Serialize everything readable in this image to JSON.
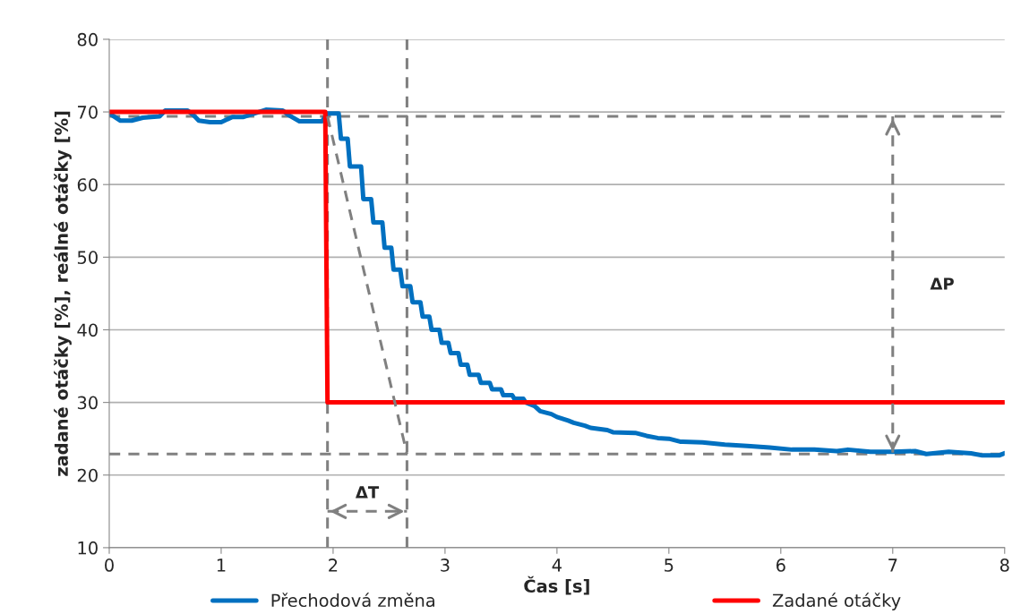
{
  "chart_data": {
    "type": "line",
    "xlabel": "Čas [s]",
    "ylabel": "zadané otáčky [%], reálné otáčky [%]",
    "xlim": [
      0,
      8
    ],
    "ylim": [
      10,
      80
    ],
    "xticks": [
      0,
      1,
      2,
      3,
      4,
      5,
      6,
      7,
      8
    ],
    "yticks": [
      10,
      20,
      30,
      40,
      50,
      60,
      70,
      80
    ],
    "grid": "y",
    "legend": "bottom",
    "marker": "none",
    "series": [
      {
        "name": "Přechodová změna",
        "color": "#0070c0",
        "line_style": "solid",
        "x": [
          0,
          0.1,
          0.2,
          0.3,
          0.45,
          0.5,
          0.7,
          0.75,
          0.8,
          0.9,
          1.0,
          1.1,
          1.2,
          1.3,
          1.4,
          1.55,
          1.6,
          1.7,
          1.8,
          1.9,
          1.95,
          2.05,
          2.07,
          2.13,
          2.15,
          2.25,
          2.27,
          2.34,
          2.36,
          2.44,
          2.46,
          2.52,
          2.54,
          2.6,
          2.62,
          2.69,
          2.71,
          2.78,
          2.8,
          2.86,
          2.88,
          2.95,
          2.97,
          3.03,
          3.05,
          3.12,
          3.14,
          3.2,
          3.22,
          3.3,
          3.32,
          3.4,
          3.42,
          3.5,
          3.52,
          3.6,
          3.62,
          3.7,
          3.72,
          3.8,
          3.85,
          3.95,
          4.0,
          4.1,
          4.15,
          4.25,
          4.3,
          4.45,
          4.5,
          4.7,
          4.8,
          4.9,
          5.0,
          5.1,
          5.3,
          5.5,
          5.7,
          5.9,
          6.1,
          6.3,
          6.5,
          6.6,
          6.8,
          7.0,
          7.2,
          7.3,
          7.5,
          7.7,
          7.8,
          7.95,
          8.0
        ],
        "values": [
          69.8,
          68.8,
          68.8,
          69.2,
          69.4,
          70.2,
          70.2,
          69.6,
          68.8,
          68.6,
          68.6,
          69.3,
          69.3,
          69.8,
          70.3,
          70.2,
          69.6,
          68.7,
          68.7,
          68.7,
          69.8,
          69.8,
          66.3,
          66.3,
          62.5,
          62.5,
          58.0,
          58.0,
          54.8,
          54.8,
          51.3,
          51.3,
          48.3,
          48.3,
          46.0,
          46.0,
          43.8,
          43.8,
          41.8,
          41.8,
          40.0,
          40.0,
          38.2,
          38.2,
          36.8,
          36.8,
          35.2,
          35.2,
          33.8,
          33.8,
          32.7,
          32.7,
          31.8,
          31.8,
          31.0,
          31.0,
          30.5,
          30.5,
          30.0,
          29.5,
          28.8,
          28.4,
          28.0,
          27.5,
          27.2,
          26.8,
          26.5,
          26.2,
          25.9,
          25.8,
          25.4,
          25.1,
          25.0,
          24.6,
          24.5,
          24.2,
          24.0,
          23.8,
          23.5,
          23.5,
          23.3,
          23.5,
          23.2,
          23.2,
          23.3,
          22.9,
          23.2,
          23.0,
          22.7,
          22.7,
          23.0
        ]
      },
      {
        "name": "Zadané otáčky",
        "color": "#ff0000",
        "line_style": "solid",
        "x": [
          0,
          1.93,
          1.95,
          8
        ],
        "values": [
          70,
          70,
          30,
          30
        ]
      },
      {
        "color": "#808080",
        "line_style": "dashed",
        "x": [
          1.95,
          2.66
        ],
        "values": [
          69.4,
          22.9
        ]
      },
      {
        "color": "#808080",
        "line_style": "dashed",
        "x": [
          7,
          7
        ],
        "values": [
          69.4,
          22.9
        ]
      },
      {
        "color": "#808080",
        "line_style": "dashed",
        "x": [
          1.95,
          2.66
        ],
        "values": [
          15,
          15
        ]
      }
    ],
    "ref_lines": [
      {
        "axis": "y",
        "value": 69.4,
        "color": "#808080",
        "line_style": "dashed"
      },
      {
        "axis": "y",
        "value": 22.9,
        "color": "#808080",
        "line_style": "dashed"
      },
      {
        "axis": "x",
        "value": 1.95,
        "color": "#808080",
        "line_style": "dashed"
      },
      {
        "axis": "x",
        "value": 2.66,
        "color": "#808080",
        "line_style": "dashed"
      }
    ],
    "annotations": [
      {
        "text": "ΔP",
        "x": 7,
        "y": 46.15
      },
      {
        "text": "ΔT",
        "x": 2.305,
        "y": 15
      }
    ]
  }
}
